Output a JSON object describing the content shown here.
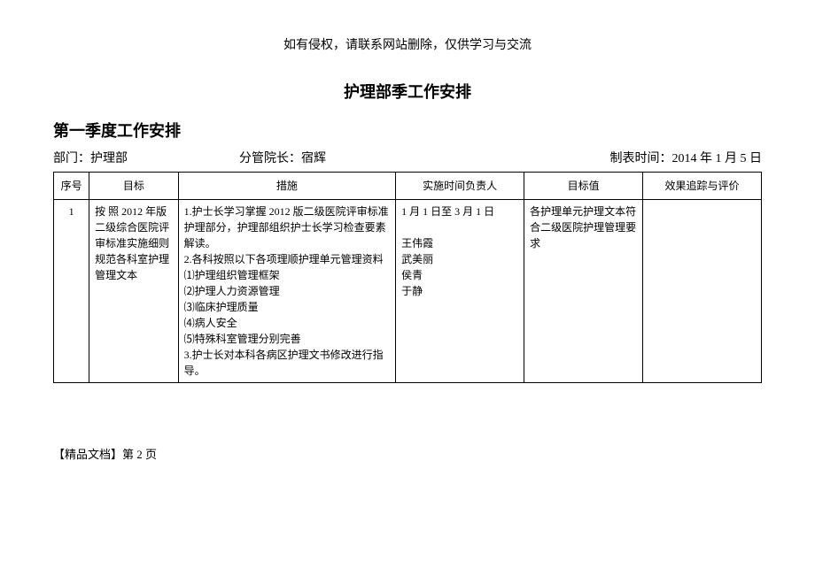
{
  "notice": "如有侵权，请联系网站删除，仅供学习与交流",
  "title": "护理部季工作安排",
  "subtitle": "第一季度工作安排",
  "meta": {
    "dept_label": "部门：",
    "dept_value": "护理部",
    "leader_label": "分管院长：",
    "leader_value": "宿辉",
    "date_label": "制表时间：",
    "date_value": "2014 年 1 月 5 日"
  },
  "columns": {
    "seq": "序号",
    "goal": "目标",
    "measure": "措施",
    "time": "实施时间负责人",
    "target": "目标值",
    "eval": "效果追踪与评价"
  },
  "row1": {
    "seq": "1",
    "goal": "按 照 2012 年版二级综合医院评审标准实施细则规范各科室护理管理文本",
    "measure": "1.护士长学习掌握 2012 版二级医院评审标准护理部分，护理部组织护士长学习检查要素解读。\n2.各科按照以下各项理顺护理单元管理资料\n⑴护理组织管理框架\n⑵护理人力资源管理\n⑶临床护理质量\n⑷病人安全\n⑸特殊科室管理分别完善\n3.护士长对本科各病区护理文书修改进行指导。",
    "time": "1 月 1 日至 3 月 1 日\n\n王伟霞\n武美丽\n侯青\n于静",
    "target": "各护理单元护理文本符合二级医院护理管理要求",
    "eval": ""
  },
  "footer": "【精品文档】第 2 页"
}
